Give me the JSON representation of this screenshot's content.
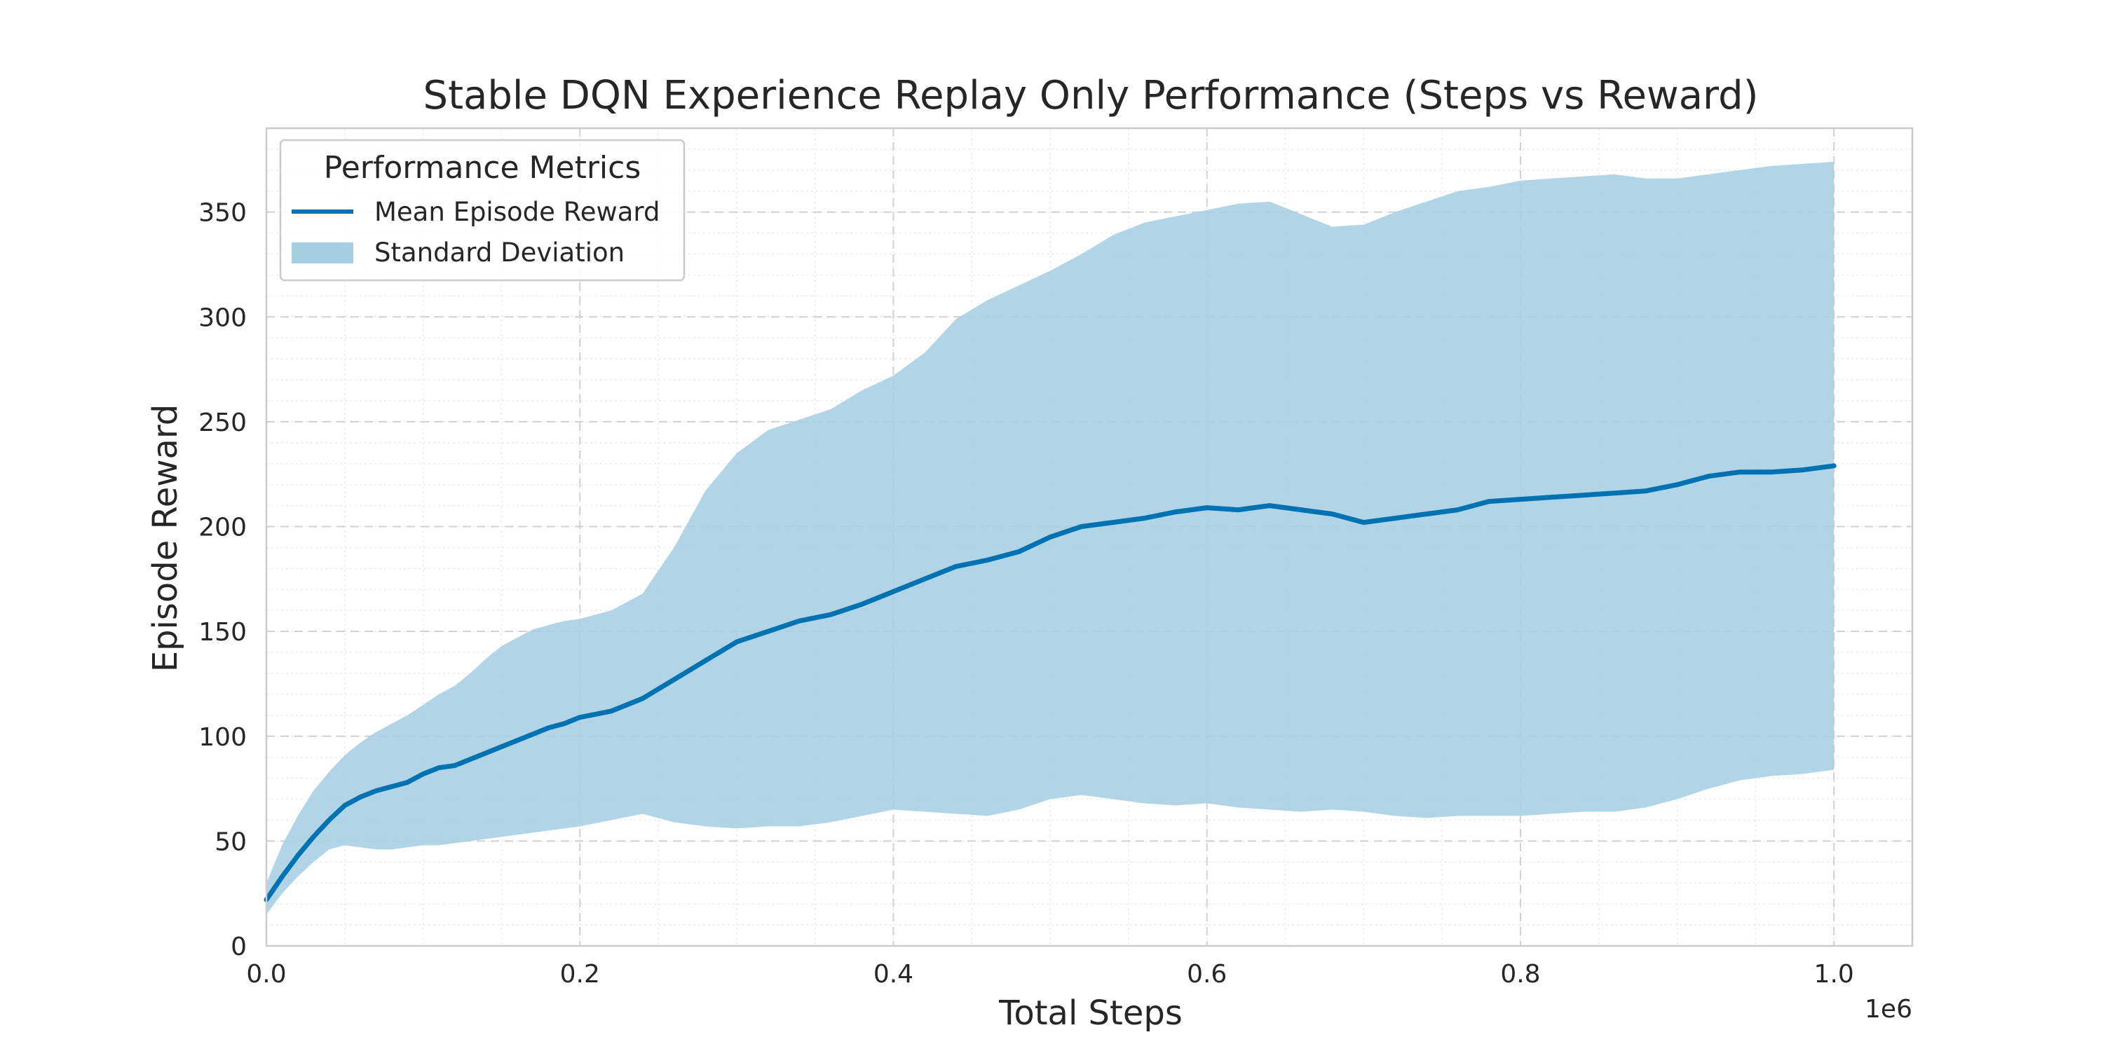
{
  "chart_data": {
    "type": "line",
    "title": "Stable DQN Experience Replay Only Performance (Steps vs Reward)",
    "xlabel": "Total Steps",
    "ylabel": "Episode Reward",
    "x_offset_label": "1e6",
    "xlim": [
      0,
      1.05
    ],
    "ylim": [
      0,
      390
    ],
    "x_ticks": [
      "0.0",
      "0.2",
      "0.4",
      "0.6",
      "0.8",
      "1.0"
    ],
    "y_ticks": [
      "0",
      "50",
      "100",
      "150",
      "200",
      "250",
      "300",
      "350"
    ],
    "grid": true,
    "legend": {
      "title": "Performance Metrics",
      "placement": "top-left",
      "entries": [
        "Mean Episode Reward",
        "Standard Deviation"
      ]
    },
    "colors": {
      "mean": "#0072B2",
      "std": "#a6cfe4"
    },
    "series": [
      {
        "name": "Mean Episode Reward",
        "x": [
          0.0,
          0.01,
          0.02,
          0.03,
          0.04,
          0.05,
          0.06,
          0.07,
          0.08,
          0.09,
          0.1,
          0.11,
          0.12,
          0.13,
          0.14,
          0.15,
          0.16,
          0.17,
          0.18,
          0.19,
          0.2,
          0.22,
          0.24,
          0.26,
          0.28,
          0.3,
          0.32,
          0.34,
          0.36,
          0.38,
          0.4,
          0.42,
          0.44,
          0.46,
          0.48,
          0.5,
          0.52,
          0.54,
          0.56,
          0.58,
          0.6,
          0.62,
          0.64,
          0.66,
          0.68,
          0.7,
          0.72,
          0.74,
          0.76,
          0.78,
          0.8,
          0.82,
          0.84,
          0.86,
          0.88,
          0.9,
          0.92,
          0.94,
          0.96,
          0.98,
          1.0
        ],
        "values": [
          22,
          33,
          43,
          52,
          60,
          67,
          71,
          74,
          76,
          78,
          82,
          85,
          86,
          89,
          92,
          95,
          98,
          101,
          104,
          106,
          109,
          112,
          118,
          127,
          136,
          145,
          150,
          155,
          158,
          163,
          169,
          175,
          181,
          184,
          188,
          195,
          200,
          202,
          204,
          207,
          209,
          208,
          210,
          208,
          206,
          202,
          204,
          206,
          208,
          212,
          213,
          214,
          215,
          216,
          217,
          220,
          224,
          226,
          226,
          227,
          229
        ]
      },
      {
        "name": "Standard Deviation",
        "x": [
          0.0,
          0.01,
          0.02,
          0.03,
          0.04,
          0.05,
          0.06,
          0.07,
          0.08,
          0.09,
          0.1,
          0.11,
          0.12,
          0.13,
          0.14,
          0.15,
          0.16,
          0.17,
          0.18,
          0.19,
          0.2,
          0.22,
          0.24,
          0.26,
          0.28,
          0.3,
          0.32,
          0.34,
          0.36,
          0.38,
          0.4,
          0.42,
          0.44,
          0.46,
          0.48,
          0.5,
          0.52,
          0.54,
          0.56,
          0.58,
          0.6,
          0.62,
          0.64,
          0.66,
          0.68,
          0.7,
          0.72,
          0.74,
          0.76,
          0.78,
          0.8,
          0.82,
          0.84,
          0.86,
          0.88,
          0.9,
          0.92,
          0.94,
          0.96,
          0.98,
          1.0
        ],
        "lower": [
          15,
          25,
          33,
          40,
          46,
          48,
          47,
          46,
          46,
          47,
          48,
          48,
          49,
          50,
          51,
          52,
          53,
          54,
          55,
          56,
          57,
          60,
          63,
          59,
          57,
          56,
          57,
          57,
          59,
          62,
          65,
          64,
          63,
          62,
          65,
          70,
          72,
          70,
          68,
          67,
          68,
          66,
          65,
          64,
          65,
          64,
          62,
          61,
          62,
          62,
          62,
          63,
          64,
          64,
          66,
          70,
          75,
          79,
          81,
          82,
          84
        ],
        "upper": [
          30,
          48,
          62,
          74,
          83,
          91,
          97,
          102,
          106,
          110,
          115,
          120,
          124,
          130,
          137,
          143,
          147,
          151,
          153,
          155,
          156,
          160,
          168,
          190,
          217,
          235,
          246,
          251,
          256,
          265,
          272,
          283,
          299,
          308,
          315,
          322,
          330,
          339,
          345,
          348,
          351,
          354,
          355,
          349,
          343,
          344,
          350,
          355,
          360,
          362,
          365,
          366,
          367,
          368,
          366,
          366,
          368,
          370,
          372,
          373,
          374
        ]
      }
    ]
  }
}
